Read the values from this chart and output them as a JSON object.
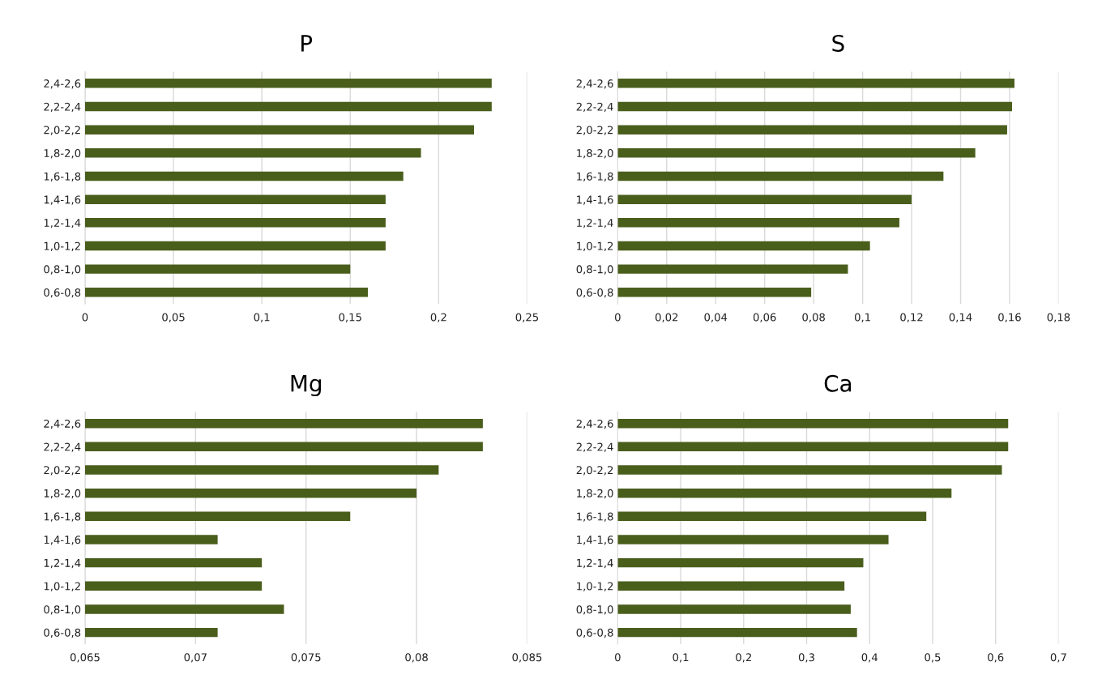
{
  "chart_data": [
    {
      "type": "bar",
      "orientation": "horizontal",
      "title": "P",
      "color": "#4a5e1c",
      "grid": "x",
      "categories": [
        "2,4-2,6",
        "2,2-2,4",
        "2,0-2,2",
        "1,8-2,0",
        "1,6-1,8",
        "1,4-1,6",
        "1,2-1,4",
        "1,0-1,2",
        "0,8-1,0",
        "0,6-0,8"
      ],
      "values": [
        0.23,
        0.23,
        0.22,
        0.19,
        0.18,
        0.17,
        0.17,
        0.17,
        0.15,
        0.16
      ],
      "xlim": [
        0,
        0.25
      ],
      "xticks": [
        0,
        {
          "value": 0.05,
          "label": "0,05"
        },
        {
          "value": 0.1,
          "label": "0,1"
        },
        {
          "value": 0.15,
          "label": "0,15"
        },
        {
          "value": 0.2,
          "label": "0,2"
        },
        {
          "value": 0.25,
          "label": "0,25"
        }
      ]
    },
    {
      "type": "bar",
      "orientation": "horizontal",
      "title": "S",
      "color": "#4a5e1c",
      "grid": "x",
      "categories": [
        "2,4-2,6",
        "2,2-2,4",
        "2,0-2,2",
        "1,8-2,0",
        "1,6-1,8",
        "1,4-1,6",
        "1,2-1,4",
        "1,0-1,2",
        "0,8-1,0",
        "0,6-0,8"
      ],
      "values": [
        0.162,
        0.161,
        0.159,
        0.146,
        0.133,
        0.12,
        0.115,
        0.103,
        0.094,
        0.079
      ],
      "xlim": [
        0,
        0.18
      ],
      "xticks": [
        0,
        {
          "value": 0.02,
          "label": "0,02"
        },
        {
          "value": 0.04,
          "label": "0,04"
        },
        {
          "value": 0.06,
          "label": "0,06"
        },
        {
          "value": 0.08,
          "label": "0,08"
        },
        {
          "value": 0.1,
          "label": "0,1"
        },
        {
          "value": 0.12,
          "label": "0,12"
        },
        {
          "value": 0.14,
          "label": "0,14"
        },
        {
          "value": 0.16,
          "label": "0,16"
        },
        {
          "value": 0.18,
          "label": "0,18"
        }
      ]
    },
    {
      "type": "bar",
      "orientation": "horizontal",
      "title": "Mg",
      "color": "#4a5e1c",
      "grid": "x",
      "categories": [
        "2,4-2,6",
        "2,2-2,4",
        "2,0-2,2",
        "1,8-2,0",
        "1,6-1,8",
        "1,4-1,6",
        "1,2-1,4",
        "1,0-1,2",
        "0,8-1,0",
        "0,6-0,8"
      ],
      "values": [
        0.083,
        0.083,
        0.081,
        0.08,
        0.077,
        0.071,
        0.073,
        0.073,
        0.074,
        0.071
      ],
      "xlim": [
        0.065,
        0.085
      ],
      "xticks": [
        {
          "value": 0.065,
          "label": "0,065"
        },
        {
          "value": 0.07,
          "label": "0,07"
        },
        {
          "value": 0.075,
          "label": "0,075"
        },
        {
          "value": 0.08,
          "label": "0,08"
        },
        {
          "value": 0.085,
          "label": "0,085"
        }
      ]
    },
    {
      "type": "bar",
      "orientation": "horizontal",
      "title": "Ca",
      "color": "#4a5e1c",
      "grid": "x",
      "categories": [
        "2,4-2,6",
        "2,2-2,4",
        "2,0-2,2",
        "1,8-2,0",
        "1,6-1,8",
        "1,4-1,6",
        "1,2-1,4",
        "1,0-1,2",
        "0,8-1,0",
        "0,6-0,8"
      ],
      "values": [
        0.62,
        0.62,
        0.61,
        0.53,
        0.49,
        0.43,
        0.39,
        0.36,
        0.37,
        0.38
      ],
      "xlim": [
        0,
        0.7
      ],
      "xticks": [
        0,
        {
          "value": 0.1,
          "label": "0,1"
        },
        {
          "value": 0.2,
          "label": "0,2"
        },
        {
          "value": 0.3,
          "label": "0,3"
        },
        {
          "value": 0.4,
          "label": "0,4"
        },
        {
          "value": 0.5,
          "label": "0,5"
        },
        {
          "value": 0.6,
          "label": "0,6"
        },
        {
          "value": 0.7,
          "label": "0,7"
        }
      ]
    }
  ]
}
